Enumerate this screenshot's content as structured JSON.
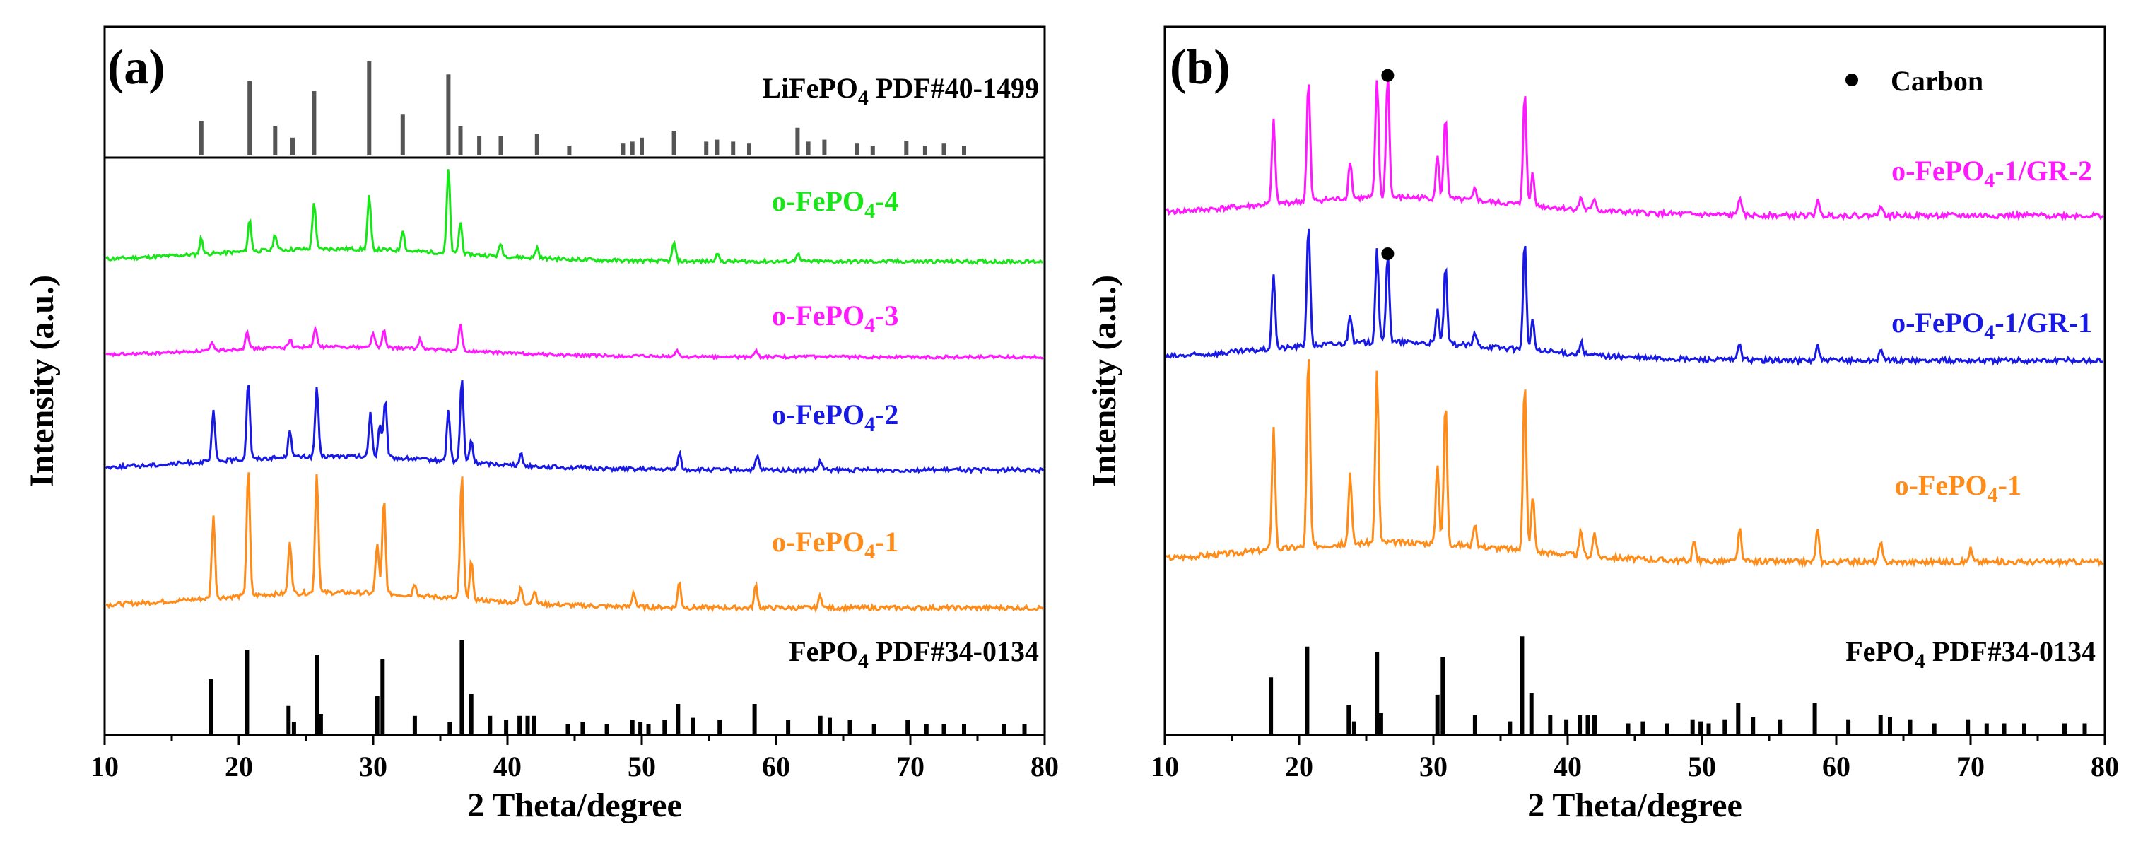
{
  "chart_data": [
    {
      "type": "line",
      "panel_label": "(a)",
      "xlabel": "2 Theta/degree",
      "ylabel": "Intensity (a.u.)",
      "xlim": [
        10,
        80
      ],
      "xticks": [
        "10",
        "20",
        "30",
        "40",
        "50",
        "60",
        "70",
        "80"
      ],
      "reference_top": {
        "label_main": "LiFePO",
        "label_sub": "4",
        "label_rest": " PDF#40-1499",
        "color": "#555555",
        "peaks": [
          [
            17.2,
            0.35
          ],
          [
            20.8,
            0.75
          ],
          [
            22.7,
            0.3
          ],
          [
            24.0,
            0.18
          ],
          [
            25.6,
            0.65
          ],
          [
            29.7,
            0.95
          ],
          [
            32.2,
            0.42
          ],
          [
            35.6,
            0.82
          ],
          [
            36.5,
            0.3
          ],
          [
            37.9,
            0.2
          ],
          [
            39.5,
            0.2
          ],
          [
            42.2,
            0.22
          ],
          [
            44.6,
            0.1
          ],
          [
            48.6,
            0.12
          ],
          [
            49.3,
            0.14
          ],
          [
            50.0,
            0.18
          ],
          [
            52.4,
            0.25
          ],
          [
            54.8,
            0.14
          ],
          [
            55.6,
            0.16
          ],
          [
            56.8,
            0.14
          ],
          [
            58.0,
            0.12
          ],
          [
            61.6,
            0.28
          ],
          [
            62.4,
            0.14
          ],
          [
            63.6,
            0.16
          ],
          [
            66.0,
            0.12
          ],
          [
            67.2,
            0.1
          ],
          [
            69.7,
            0.15
          ],
          [
            71.1,
            0.1
          ],
          [
            72.5,
            0.12
          ],
          [
            74.0,
            0.1
          ]
        ]
      },
      "reference_bottom": {
        "label_main": "FePO",
        "label_sub": "4",
        "label_rest": " PDF#34-0134",
        "color": "#000000",
        "peaks": [
          [
            17.9,
            0.55
          ],
          [
            20.6,
            0.85
          ],
          [
            23.7,
            0.28
          ],
          [
            24.1,
            0.12
          ],
          [
            25.8,
            0.8
          ],
          [
            26.1,
            0.2
          ],
          [
            30.3,
            0.38
          ],
          [
            30.7,
            0.75
          ],
          [
            33.1,
            0.18
          ],
          [
            35.7,
            0.12
          ],
          [
            36.6,
            0.95
          ],
          [
            37.3,
            0.4
          ],
          [
            38.7,
            0.18
          ],
          [
            39.9,
            0.14
          ],
          [
            40.9,
            0.18
          ],
          [
            41.5,
            0.18
          ],
          [
            42.0,
            0.18
          ],
          [
            44.5,
            0.1
          ],
          [
            45.6,
            0.12
          ],
          [
            47.4,
            0.1
          ],
          [
            49.3,
            0.14
          ],
          [
            49.9,
            0.12
          ],
          [
            50.5,
            0.1
          ],
          [
            51.7,
            0.14
          ],
          [
            52.7,
            0.3
          ],
          [
            53.8,
            0.16
          ],
          [
            55.8,
            0.14
          ],
          [
            58.4,
            0.3
          ],
          [
            60.9,
            0.14
          ],
          [
            63.3,
            0.18
          ],
          [
            64.0,
            0.16
          ],
          [
            65.5,
            0.14
          ],
          [
            67.3,
            0.1
          ],
          [
            69.8,
            0.14
          ],
          [
            71.2,
            0.1
          ],
          [
            72.5,
            0.1
          ],
          [
            74.0,
            0.1
          ],
          [
            77.0,
            0.1
          ],
          [
            78.5,
            0.1
          ]
        ]
      },
      "series": [
        {
          "name_main": "o-FePO",
          "name_sub": "4",
          "name_rest": "-4",
          "color": "#19e619",
          "peaks": [
            [
              17.2,
              0.15
            ],
            [
              20.8,
              0.3
            ],
            [
              22.7,
              0.15
            ],
            [
              25.6,
              0.45
            ],
            [
              29.7,
              0.5
            ],
            [
              32.2,
              0.2
            ],
            [
              35.6,
              0.8
            ],
            [
              36.5,
              0.3
            ],
            [
              39.5,
              0.12
            ],
            [
              42.2,
              0.1
            ],
            [
              52.4,
              0.18
            ],
            [
              55.6,
              0.08
            ],
            [
              61.6,
              0.08
            ]
          ]
        },
        {
          "name_main": "o-FePO",
          "name_sub": "4",
          "name_rest": "-3",
          "color": "#ff19ff",
          "peaks": [
            [
              18.0,
              0.08
            ],
            [
              20.6,
              0.22
            ],
            [
              23.8,
              0.1
            ],
            [
              25.7,
              0.22
            ],
            [
              30.0,
              0.18
            ],
            [
              30.8,
              0.2
            ],
            [
              33.5,
              0.12
            ],
            [
              36.5,
              0.32
            ],
            [
              52.6,
              0.08
            ],
            [
              58.5,
              0.08
            ]
          ]
        },
        {
          "name_main": "o-FePO",
          "name_sub": "4",
          "name_rest": "-2",
          "color": "#1919e6",
          "peaks": [
            [
              18.1,
              0.45
            ],
            [
              20.7,
              0.7
            ],
            [
              23.8,
              0.25
            ],
            [
              25.8,
              0.62
            ],
            [
              29.8,
              0.4
            ],
            [
              30.5,
              0.3
            ],
            [
              30.9,
              0.5
            ],
            [
              35.6,
              0.45
            ],
            [
              36.6,
              0.75
            ],
            [
              37.3,
              0.2
            ],
            [
              41.0,
              0.1
            ],
            [
              52.8,
              0.15
            ],
            [
              58.6,
              0.12
            ],
            [
              63.3,
              0.08
            ]
          ]
        },
        {
          "name_main": "o-FePO",
          "name_sub": "4",
          "name_rest": "-1",
          "color": "#ff8c19",
          "peaks": [
            [
              18.1,
              0.65
            ],
            [
              20.7,
              1.0
            ],
            [
              23.8,
              0.42
            ],
            [
              25.8,
              0.95
            ],
            [
              30.3,
              0.4
            ],
            [
              30.8,
              0.75
            ],
            [
              33.1,
              0.1
            ],
            [
              36.6,
              0.98
            ],
            [
              37.3,
              0.3
            ],
            [
              41.0,
              0.12
            ],
            [
              42.0,
              0.1
            ],
            [
              49.4,
              0.12
            ],
            [
              52.8,
              0.2
            ],
            [
              58.5,
              0.18
            ],
            [
              63.3,
              0.1
            ]
          ]
        }
      ]
    },
    {
      "type": "line",
      "panel_label": "(b)",
      "xlabel": "2 Theta/degree",
      "ylabel": "Intensity (a.u.)",
      "xlim": [
        10,
        80
      ],
      "xticks": [
        "10",
        "20",
        "30",
        "40",
        "50",
        "60",
        "70",
        "80"
      ],
      "legend_marker_label": "Carbon",
      "carbon_marker_2theta": 26.6,
      "reference_bottom": {
        "label_main": "FePO",
        "label_sub": "4",
        "label_rest": " PDF#34-0134",
        "color": "#000000",
        "peaks": [
          [
            17.9,
            0.55
          ],
          [
            20.6,
            0.85
          ],
          [
            23.7,
            0.28
          ],
          [
            24.1,
            0.12
          ],
          [
            25.8,
            0.8
          ],
          [
            26.1,
            0.2
          ],
          [
            30.3,
            0.38
          ],
          [
            30.7,
            0.75
          ],
          [
            33.1,
            0.18
          ],
          [
            35.7,
            0.12
          ],
          [
            36.6,
            0.95
          ],
          [
            37.3,
            0.4
          ],
          [
            38.7,
            0.18
          ],
          [
            39.9,
            0.14
          ],
          [
            40.9,
            0.18
          ],
          [
            41.5,
            0.18
          ],
          [
            42.0,
            0.18
          ],
          [
            44.5,
            0.1
          ],
          [
            45.6,
            0.12
          ],
          [
            47.4,
            0.1
          ],
          [
            49.3,
            0.14
          ],
          [
            49.9,
            0.12
          ],
          [
            50.5,
            0.1
          ],
          [
            51.7,
            0.14
          ],
          [
            52.7,
            0.3
          ],
          [
            53.8,
            0.16
          ],
          [
            55.8,
            0.14
          ],
          [
            58.4,
            0.3
          ],
          [
            60.9,
            0.14
          ],
          [
            63.3,
            0.18
          ],
          [
            64.0,
            0.16
          ],
          [
            65.5,
            0.14
          ],
          [
            67.3,
            0.1
          ],
          [
            69.8,
            0.14
          ],
          [
            71.2,
            0.1
          ],
          [
            72.5,
            0.1
          ],
          [
            74.0,
            0.1
          ],
          [
            77.0,
            0.1
          ],
          [
            78.5,
            0.1
          ]
        ]
      },
      "series": [
        {
          "name_main": "o-FePO",
          "name_sub": "4",
          "name_rest": "-1/GR-2",
          "color": "#ff19ff",
          "peaks": [
            [
              18.1,
              0.55
            ],
            [
              20.7,
              0.8
            ],
            [
              23.8,
              0.25
            ],
            [
              25.8,
              0.78
            ],
            [
              26.6,
              0.82
            ],
            [
              30.3,
              0.28
            ],
            [
              30.9,
              0.55
            ],
            [
              33.1,
              0.08
            ],
            [
              36.8,
              0.75
            ],
            [
              37.4,
              0.22
            ],
            [
              41.0,
              0.08
            ],
            [
              42.0,
              0.08
            ],
            [
              52.8,
              0.12
            ],
            [
              58.6,
              0.1
            ],
            [
              63.3,
              0.08
            ]
          ]
        },
        {
          "name_main": "o-FePO",
          "name_sub": "4",
          "name_rest": "-1/GR-1",
          "color": "#1919e6",
          "peaks": [
            [
              18.1,
              0.5
            ],
            [
              20.7,
              0.82
            ],
            [
              23.8,
              0.2
            ],
            [
              25.8,
              0.62
            ],
            [
              26.6,
              0.6
            ],
            [
              30.3,
              0.22
            ],
            [
              30.9,
              0.5
            ],
            [
              33.1,
              0.08
            ],
            [
              36.8,
              0.72
            ],
            [
              37.4,
              0.2
            ],
            [
              41.0,
              0.08
            ],
            [
              52.8,
              0.12
            ],
            [
              58.6,
              0.1
            ],
            [
              63.3,
              0.08
            ]
          ]
        },
        {
          "name_main": "o-FePO",
          "name_sub": "4",
          "name_rest": "-1",
          "color": "#ff8c19",
          "peaks": [
            [
              18.1,
              0.75
            ],
            [
              20.7,
              1.2
            ],
            [
              23.8,
              0.42
            ],
            [
              25.8,
              1.05
            ],
            [
              30.3,
              0.5
            ],
            [
              30.9,
              0.88
            ],
            [
              33.1,
              0.12
            ],
            [
              36.8,
              1.05
            ],
            [
              37.4,
              0.35
            ],
            [
              41.0,
              0.15
            ],
            [
              42.0,
              0.15
            ],
            [
              49.4,
              0.12
            ],
            [
              52.8,
              0.2
            ],
            [
              58.6,
              0.2
            ],
            [
              63.3,
              0.12
            ],
            [
              70.0,
              0.08
            ]
          ]
        }
      ]
    }
  ]
}
